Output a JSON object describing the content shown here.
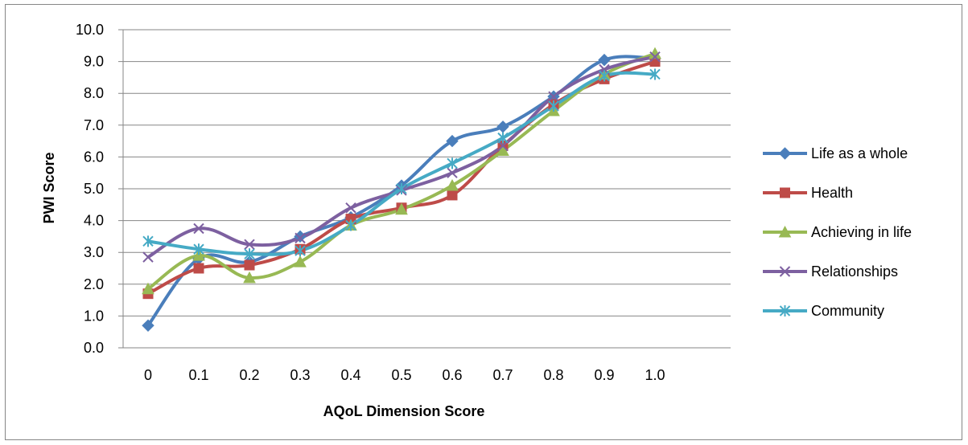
{
  "chart_data": {
    "type": "line",
    "categories": [
      "0",
      "0.1",
      "0.2",
      "0.3",
      "0.4",
      "0.5",
      "0.6",
      "0.7",
      "0.8",
      "0.9",
      "1.0"
    ],
    "xlabel": "AQoL Dimension  Score",
    "ylabel": "PWI  Score",
    "ylim": [
      0,
      10
    ],
    "yticks": [
      "0.0",
      "1.0",
      "2.0",
      "3.0",
      "4.0",
      "5.0",
      "6.0",
      "7.0",
      "8.0",
      "9.0",
      "10.0"
    ],
    "grid": true,
    "legend_position": "right",
    "series": [
      {
        "name": "Life as a whole",
        "color": "#4A7EBB",
        "marker": "diamond",
        "values": [
          0.7,
          2.8,
          2.7,
          3.5,
          4.1,
          5.1,
          6.5,
          6.95,
          7.9,
          9.05,
          9.1
        ]
      },
      {
        "name": "Health",
        "color": "#BE4B48",
        "marker": "square",
        "values": [
          1.7,
          2.5,
          2.6,
          3.1,
          4.05,
          4.4,
          4.8,
          6.35,
          7.65,
          8.45,
          9.0
        ]
      },
      {
        "name": "Achieving in life",
        "color": "#98B954",
        "marker": "triangle",
        "values": [
          1.85,
          2.9,
          2.2,
          2.7,
          3.85,
          4.35,
          5.1,
          6.2,
          7.45,
          8.6,
          9.25
        ]
      },
      {
        "name": "Relationships",
        "color": "#7D60A0",
        "marker": "x",
        "values": [
          2.85,
          3.75,
          3.25,
          3.45,
          4.4,
          4.95,
          5.5,
          6.35,
          7.9,
          8.75,
          9.15
        ]
      },
      {
        "name": "Community",
        "color": "#46AAC5",
        "marker": "asterisk",
        "values": [
          3.35,
          3.1,
          2.95,
          3.05,
          3.85,
          5.0,
          5.8,
          6.6,
          7.6,
          8.55,
          8.6
        ]
      }
    ]
  }
}
